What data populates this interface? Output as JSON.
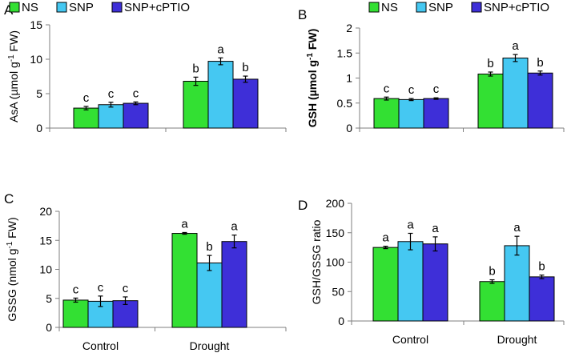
{
  "chart_data": [
    {
      "panel": "A",
      "type": "bar",
      "ylabel_parts": {
        "main": "AsA (µmol g",
        "sup": "-1",
        "tail": " FW)"
      },
      "ylabel_bold": false,
      "ylim": [
        0,
        15
      ],
      "yticks": [
        0,
        5,
        10,
        15
      ],
      "categories": [
        "Control",
        "Drought"
      ],
      "show_xticklabels": false,
      "legend": true,
      "series": [
        {
          "name": "NS",
          "values": [
            2.9,
            6.8
          ],
          "errors": [
            0.25,
            0.6
          ],
          "letters": [
            "c",
            "b"
          ]
        },
        {
          "name": "SNP",
          "values": [
            3.4,
            9.7
          ],
          "errors": [
            0.35,
            0.5
          ],
          "letters": [
            "c",
            "a"
          ]
        },
        {
          "name": "SNP+cPTIO",
          "values": [
            3.6,
            7.1
          ],
          "errors": [
            0.2,
            0.45
          ],
          "letters": [
            "c",
            "b"
          ]
        }
      ]
    },
    {
      "panel": "B",
      "type": "bar",
      "ylabel_parts": {
        "main": "GSH (µmol g",
        "sup": "-1",
        "tail": " FW)"
      },
      "ylabel_bold": true,
      "ylim": [
        0,
        2
      ],
      "yticks": [
        0,
        0.5,
        1,
        1.5,
        2
      ],
      "categories": [
        "Control",
        "Drought"
      ],
      "show_xticklabels": false,
      "legend": true,
      "series": [
        {
          "name": "NS",
          "values": [
            0.59,
            1.08
          ],
          "errors": [
            0.03,
            0.04
          ],
          "letters": [
            "c",
            "b"
          ]
        },
        {
          "name": "SNP",
          "values": [
            0.57,
            1.4
          ],
          "errors": [
            0.02,
            0.07
          ],
          "letters": [
            "c",
            "a"
          ]
        },
        {
          "name": "SNP+cPTIO",
          "values": [
            0.59,
            1.1
          ],
          "errors": [
            0.015,
            0.04
          ],
          "letters": [
            "c",
            "b"
          ]
        }
      ]
    },
    {
      "panel": "C",
      "type": "bar",
      "ylabel_parts": {
        "main": "GSSG (nmol g",
        "sup": "-1",
        "tail": " FW)"
      },
      "ylabel_bold": false,
      "ylim": [
        0,
        20
      ],
      "yticks": [
        0,
        5,
        10,
        15,
        20
      ],
      "categories": [
        "Control",
        "Drought"
      ],
      "show_xticklabels": true,
      "legend": false,
      "series": [
        {
          "name": "NS",
          "values": [
            4.7,
            16.2
          ],
          "errors": [
            0.35,
            0.15
          ],
          "letters": [
            "c",
            "a"
          ]
        },
        {
          "name": "SNP",
          "values": [
            4.5,
            11.1
          ],
          "errors": [
            0.9,
            1.3
          ],
          "letters": [
            "c",
            "b"
          ]
        },
        {
          "name": "SNP+cPTIO",
          "values": [
            4.6,
            14.8
          ],
          "errors": [
            0.65,
            1.1
          ],
          "letters": [
            "c",
            "a"
          ]
        }
      ]
    },
    {
      "panel": "D",
      "type": "bar",
      "ylabel_parts": {
        "main": "GSH/GSSG ratio",
        "sup": "",
        "tail": ""
      },
      "ylabel_bold": false,
      "ylim": [
        0,
        200
      ],
      "yticks": [
        0,
        50,
        100,
        150,
        200
      ],
      "categories": [
        "Control",
        "Drought"
      ],
      "show_xticklabels": true,
      "legend": false,
      "series": [
        {
          "name": "NS",
          "values": [
            125,
            67
          ],
          "errors": [
            2,
            3
          ],
          "letters": [
            "a",
            "b"
          ]
        },
        {
          "name": "SNP",
          "values": [
            135,
            128
          ],
          "errors": [
            14,
            16
          ],
          "letters": [
            "a",
            "a"
          ]
        },
        {
          "name": "SNP+cPTIO",
          "values": [
            131,
            75
          ],
          "errors": [
            12,
            3
          ],
          "letters": [
            "a",
            "b"
          ]
        }
      ]
    }
  ],
  "colors": {
    "NS": "#33e033",
    "SNP": "#45c8f2",
    "SNP+cPTIO": "#3e2fd8"
  }
}
